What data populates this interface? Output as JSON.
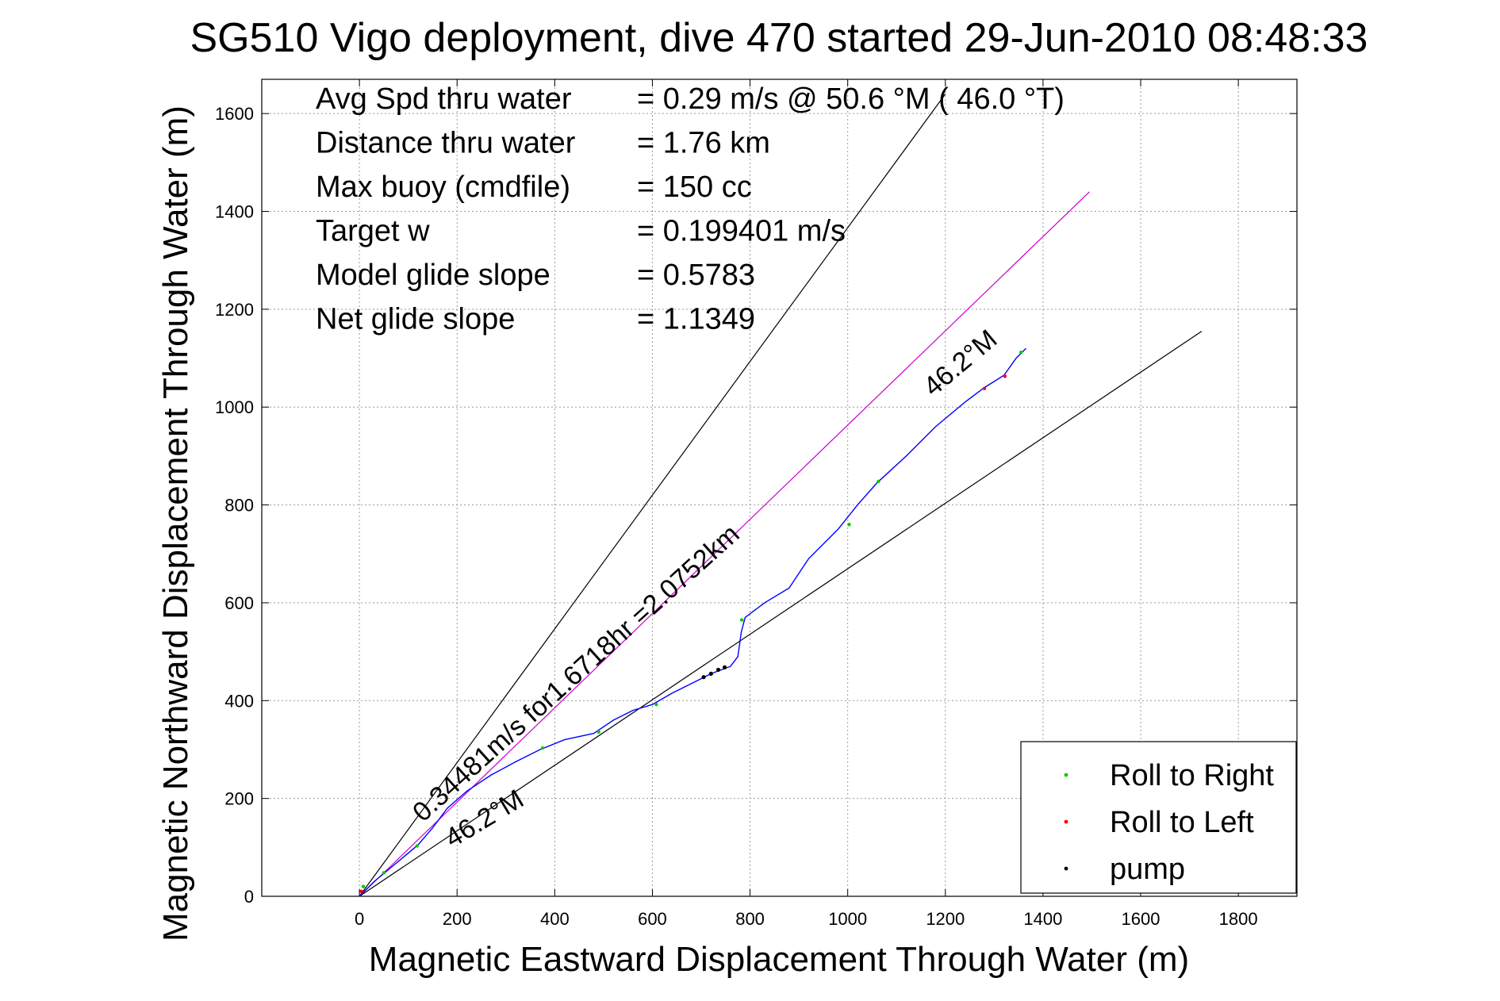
{
  "chart_data": {
    "type": "line",
    "title": "SG510 Vigo deployment, dive 470 started 29-Jun-2010 08:48:33",
    "xlabel": "Magnetic Eastward Displacement Through Water (m)",
    "ylabel": "Magnetic Northward Displacement Through Water (m)",
    "xlim": [
      -200,
      1920
    ],
    "ylim": [
      0,
      1670
    ],
    "xticks": [
      0,
      200,
      400,
      600,
      800,
      1000,
      1200,
      1400,
      1600,
      1800
    ],
    "yticks": [
      0,
      200,
      400,
      600,
      800,
      1000,
      1200,
      1400,
      1600
    ],
    "grid": true,
    "info_lines": [
      {
        "label": "Avg Spd thru water",
        "value": "=  0.29 m/s @  50.6 °M ( 46.0 °T)"
      },
      {
        "label": "Distance thru water",
        "value": "=  1.76 km"
      },
      {
        "label": "Max buoy (cmdfile)",
        "value": "= 150 cc"
      },
      {
        "label": "Target w",
        "value": "= 0.199401 m/s"
      },
      {
        "label": "Model glide slope",
        "value": "= 0.5783"
      },
      {
        "label": "Net glide slope",
        "value": "= 1.1349"
      }
    ],
    "reference_lines": [
      {
        "x": [
          0,
          1200
        ],
        "y": [
          0,
          1640
        ],
        "color": "#000000"
      },
      {
        "x": [
          0,
          1725
        ],
        "y": [
          0,
          1155
        ],
        "color": "#000000"
      },
      {
        "x": [
          0,
          1495
        ],
        "y": [
          0,
          1440
        ],
        "color": "#cc00cc"
      }
    ],
    "track": {
      "color": "#0000ff",
      "x": [
        0,
        30,
        60,
        90,
        120,
        150,
        180,
        220,
        270,
        320,
        370,
        420,
        480,
        520,
        560,
        600,
        640,
        680,
        720,
        760,
        775,
        782,
        790,
        830,
        880,
        920,
        980,
        1020,
        1060,
        1120,
        1180,
        1240,
        1280,
        1320,
        1345,
        1365
      ],
      "y": [
        0,
        30,
        55,
        80,
        105,
        140,
        180,
        215,
        248,
        275,
        300,
        320,
        333,
        360,
        380,
        392,
        415,
        435,
        455,
        470,
        490,
        540,
        570,
        600,
        630,
        690,
        750,
        800,
        845,
        900,
        960,
        1010,
        1040,
        1065,
        1100,
        1120
      ]
    },
    "annotations": [
      {
        "text": "0.34481m/s for1.6718hr =2.0752km",
        "x": 130,
        "y": 150,
        "angle_deg": 42
      },
      {
        "text": "46.2°M",
        "x": 190,
        "y": 98,
        "angle_deg": 31
      },
      {
        "text": "46.2°M",
        "x": 1175,
        "y": 1020,
        "angle_deg": 40
      }
    ],
    "legend": {
      "placement": "bottom-right",
      "entries": [
        {
          "label": "Roll to Right",
          "color": "#00cc00"
        },
        {
          "label": "Roll to Left",
          "color": "#ff0000"
        },
        {
          "label": "pump",
          "color": "#000000"
        }
      ]
    },
    "markers": [
      {
        "kind": "right",
        "x": 8,
        "y": 20
      },
      {
        "kind": "right",
        "x": 50,
        "y": 48
      },
      {
        "kind": "right",
        "x": 118,
        "y": 103
      },
      {
        "kind": "right",
        "x": 375,
        "y": 303
      },
      {
        "kind": "right",
        "x": 490,
        "y": 336
      },
      {
        "kind": "right",
        "x": 608,
        "y": 392
      },
      {
        "kind": "right",
        "x": 783,
        "y": 565
      },
      {
        "kind": "right",
        "x": 1003,
        "y": 760
      },
      {
        "kind": "right",
        "x": 1063,
        "y": 848
      },
      {
        "kind": "right",
        "x": 1355,
        "y": 1112
      },
      {
        "kind": "left",
        "x": 4,
        "y": 10
      },
      {
        "kind": "left",
        "x": 1280,
        "y": 1038
      },
      {
        "kind": "left",
        "x": 1322,
        "y": 1063
      },
      {
        "kind": "pump",
        "x": 705,
        "y": 448
      },
      {
        "kind": "pump",
        "x": 720,
        "y": 455
      },
      {
        "kind": "pump",
        "x": 735,
        "y": 463
      },
      {
        "kind": "pump",
        "x": 748,
        "y": 468
      }
    ]
  }
}
